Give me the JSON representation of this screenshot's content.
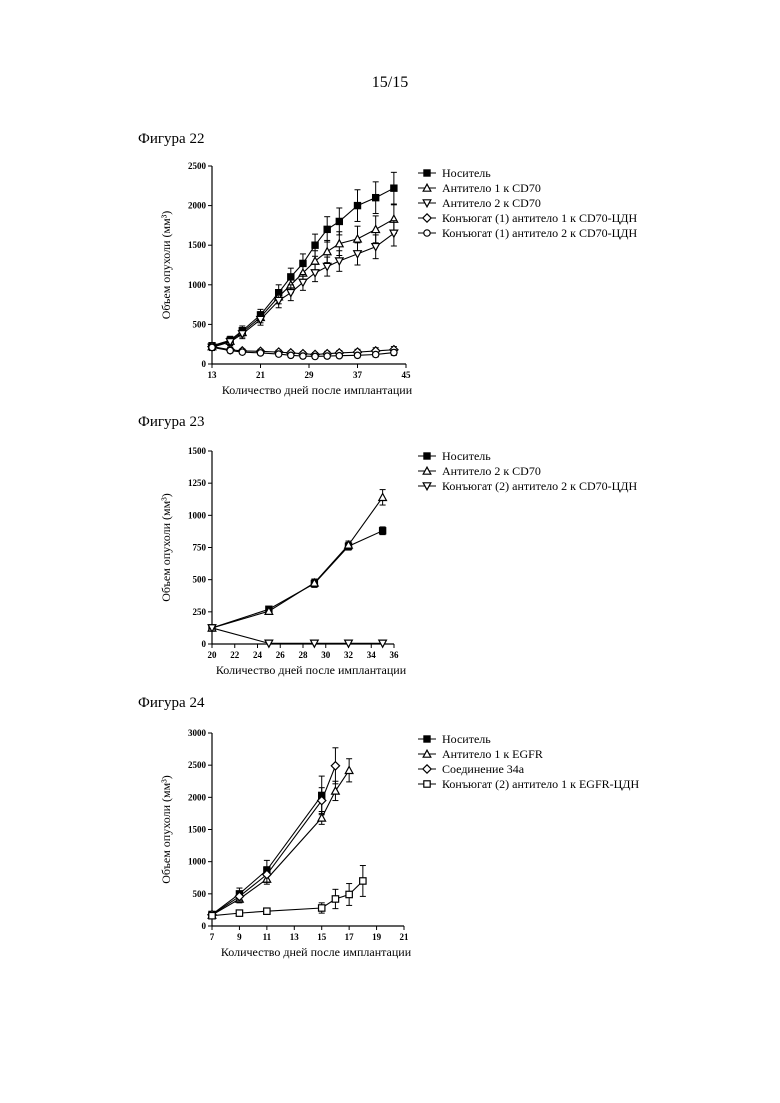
{
  "page": {
    "number": "15/15"
  },
  "figures": [
    {
      "label": "Фигура 22"
    },
    {
      "label": "Фигура 23"
    },
    {
      "label": "Фигура 24"
    }
  ],
  "chart_data": [
    {
      "type": "line",
      "xlabel": "Количество дней после имплантации",
      "ylabel": "Объем опухоли (мм³)",
      "xlim": [
        13,
        45
      ],
      "ylim": [
        0,
        2500
      ],
      "xticks": [
        13,
        21,
        29,
        37,
        45
      ],
      "yticks": [
        0,
        500,
        1000,
        1500,
        2000,
        2500
      ],
      "legend_position": "right",
      "series": [
        {
          "name": "Носитель",
          "marker": "square-filled",
          "x": [
            13,
            16,
            18,
            21,
            24,
            26,
            28,
            30,
            32,
            34,
            37,
            40,
            43
          ],
          "y": [
            230,
            300,
            420,
            620,
            900,
            1100,
            1270,
            1500,
            1700,
            1800,
            2000,
            2100,
            2220
          ],
          "err": [
            40,
            50,
            60,
            70,
            100,
            110,
            120,
            140,
            160,
            170,
            200,
            200,
            200
          ]
        },
        {
          "name": "Антитело 1 к CD70",
          "marker": "triangle-up-open",
          "x": [
            13,
            16,
            18,
            21,
            24,
            26,
            28,
            30,
            32,
            34,
            37,
            40,
            43
          ],
          "y": [
            220,
            290,
            400,
            590,
            850,
            1000,
            1150,
            1300,
            1420,
            1520,
            1580,
            1700,
            1830
          ],
          "err": [
            40,
            50,
            60,
            70,
            90,
            100,
            110,
            130,
            140,
            150,
            160,
            170,
            180
          ]
        },
        {
          "name": "Антитело 2 к CD70",
          "marker": "triangle-down-open",
          "x": [
            13,
            16,
            18,
            21,
            24,
            26,
            28,
            30,
            32,
            34,
            37,
            40,
            43
          ],
          "y": [
            210,
            280,
            380,
            560,
            800,
            900,
            1030,
            1150,
            1230,
            1300,
            1390,
            1480,
            1650
          ],
          "err": [
            40,
            50,
            60,
            70,
            90,
            100,
            100,
            110,
            120,
            130,
            140,
            150,
            160
          ]
        },
        {
          "name": "Конъюгат (1) антитело 1 к CD70-ЦДН",
          "marker": "diamond-open",
          "x": [
            13,
            16,
            18,
            21,
            24,
            26,
            28,
            30,
            32,
            34,
            37,
            40,
            43
          ],
          "y": [
            220,
            180,
            165,
            160,
            150,
            140,
            130,
            120,
            130,
            140,
            150,
            165,
            180
          ],
          "err": [
            30,
            30,
            25,
            25,
            25,
            25,
            25,
            25,
            30,
            30,
            35,
            40,
            40
          ]
        },
        {
          "name": "Конъюгат (1) антитело 2 к CD70-ЦДН",
          "marker": "circle-open",
          "x": [
            13,
            16,
            18,
            21,
            24,
            26,
            28,
            30,
            32,
            34,
            37,
            40,
            43
          ],
          "y": [
            210,
            170,
            150,
            140,
            125,
            110,
            100,
            95,
            100,
            105,
            110,
            120,
            145
          ],
          "err": [
            30,
            30,
            25,
            25,
            25,
            25,
            25,
            25,
            25,
            25,
            30,
            30,
            35
          ]
        }
      ]
    },
    {
      "type": "line",
      "xlabel": "Количество дней после имплантации",
      "ylabel": "Объем опухоли (мм³)",
      "xlim": [
        20,
        36
      ],
      "ylim": [
        0,
        1500
      ],
      "xticks": [
        20,
        22,
        24,
        26,
        28,
        30,
        32,
        34,
        36
      ],
      "yticks": [
        0,
        250,
        500,
        750,
        1000,
        1250,
        1500
      ],
      "legend_position": "right",
      "series": [
        {
          "name": "Носитель",
          "marker": "square-filled",
          "x": [
            20,
            25,
            29,
            32,
            35
          ],
          "y": [
            125,
            270,
            470,
            760,
            880
          ],
          "err": [
            10,
            20,
            30,
            30,
            30
          ]
        },
        {
          "name": "Антитело 2 к CD70",
          "marker": "triangle-up-open",
          "x": [
            20,
            25,
            29,
            32,
            35
          ],
          "y": [
            125,
            255,
            475,
            770,
            1140
          ],
          "err": [
            10,
            20,
            30,
            30,
            60
          ]
        },
        {
          "name": "Конъюгат (2) антитело 2 к CD70-ЦДН",
          "marker": "triangle-down-open",
          "x": [
            20,
            25,
            29,
            32,
            35
          ],
          "y": [
            125,
            5,
            5,
            5,
            5
          ],
          "err": [
            0,
            0,
            0,
            0,
            0
          ]
        }
      ]
    },
    {
      "type": "line",
      "xlabel": "Количество дней после имплантации",
      "ylabel": "Объем опухоли (мм³)",
      "xlim": [
        7,
        21
      ],
      "ylim": [
        0,
        3000
      ],
      "xticks": [
        7,
        9,
        11,
        13,
        15,
        17,
        19,
        21
      ],
      "yticks": [
        0,
        500,
        1000,
        1500,
        2000,
        2500,
        3000
      ],
      "legend_position": "right",
      "series": [
        {
          "name": "Носитель",
          "marker": "square-filled",
          "x": [
            7,
            9,
            11,
            15
          ],
          "y": [
            180,
            500,
            870,
            2030
          ],
          "err": [
            40,
            90,
            150,
            300
          ]
        },
        {
          "name": "Антитело 1 к EGFR",
          "marker": "triangle-up-open",
          "x": [
            7,
            9,
            11,
            15,
            16,
            17
          ],
          "y": [
            170,
            420,
            730,
            1680,
            2100,
            2420
          ],
          "err": [
            30,
            60,
            80,
            100,
            150,
            180
          ]
        },
        {
          "name": "Соединение 34а",
          "marker": "diamond-open",
          "x": [
            7,
            9,
            11,
            15,
            16
          ],
          "y": [
            175,
            460,
            800,
            1950,
            2490
          ],
          "err": [
            30,
            70,
            120,
            200,
            280
          ]
        },
        {
          "name": "Конъюгат (2) антитело 1 к EGFR-ЦДН",
          "marker": "square-open",
          "x": [
            7,
            9,
            11,
            15,
            16,
            17,
            18
          ],
          "y": [
            160,
            200,
            230,
            280,
            420,
            490,
            700
          ],
          "err": [
            30,
            30,
            40,
            80,
            150,
            170,
            240
          ]
        }
      ]
    }
  ]
}
